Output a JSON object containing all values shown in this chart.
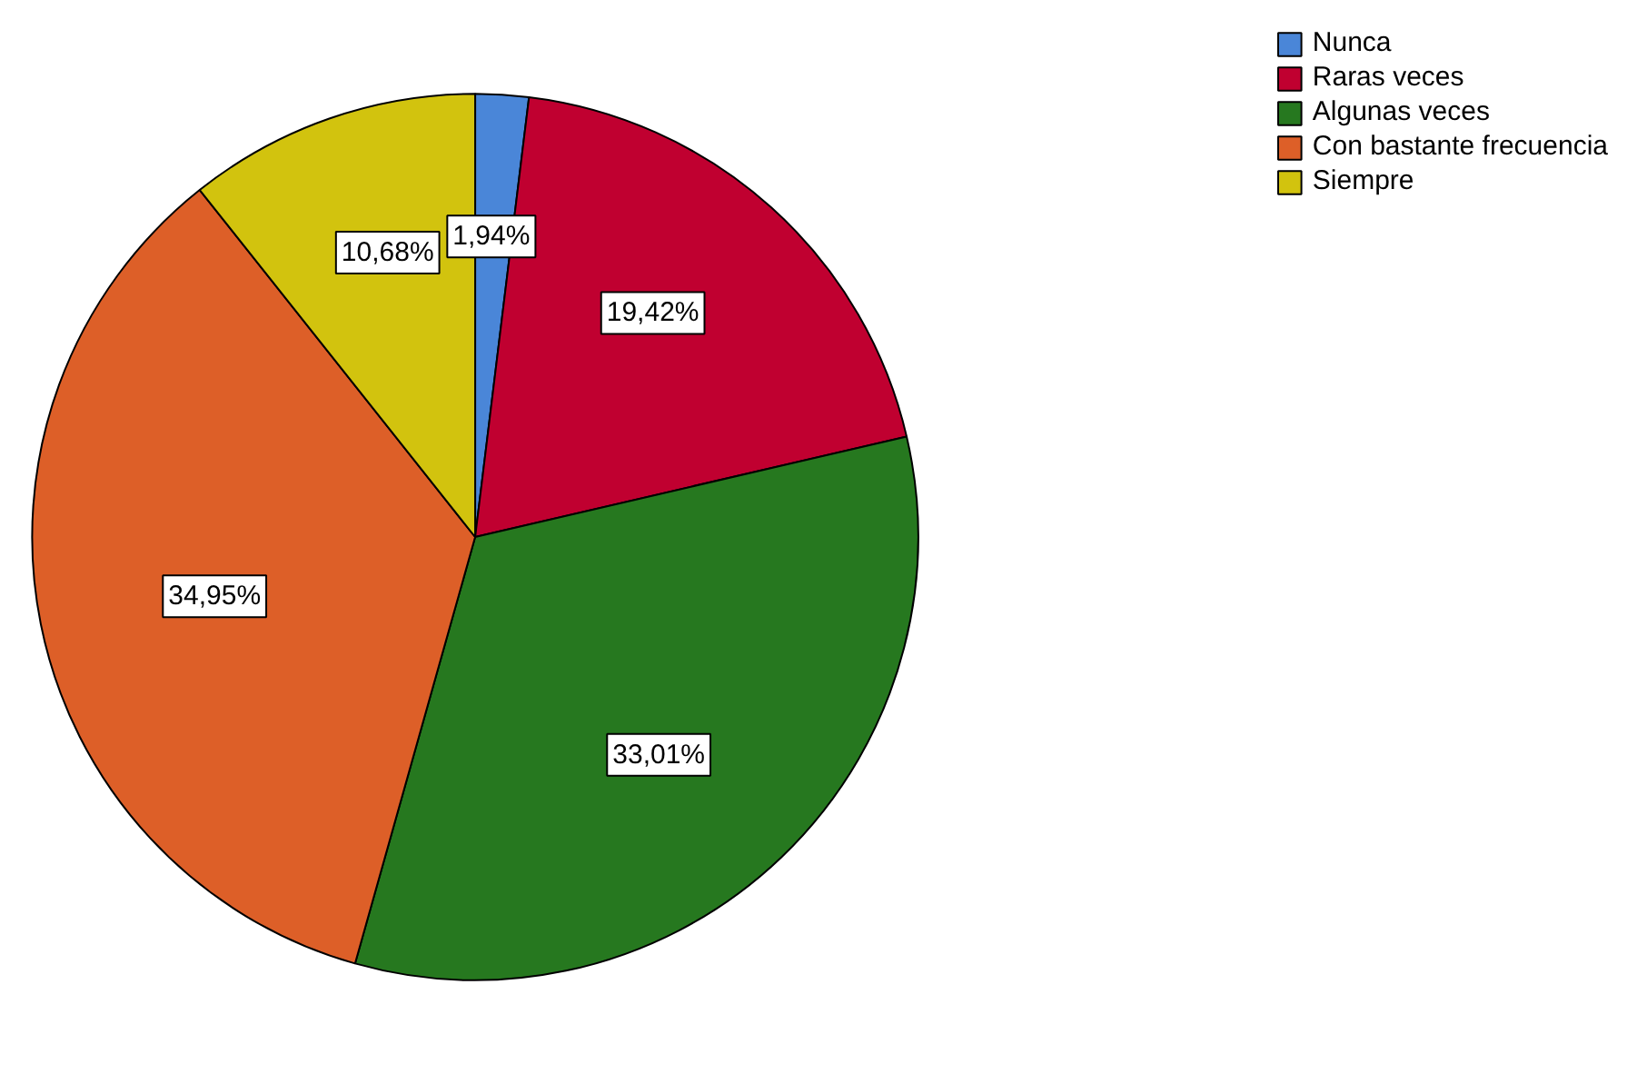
{
  "chart_data": {
    "type": "pie",
    "categories": [
      "Nunca",
      "Raras veces",
      "Algunas veces",
      "Con bastante frecuencia",
      "Siempre"
    ],
    "values": [
      1.94,
      19.42,
      33.01,
      34.95,
      10.68
    ],
    "colors": [
      "#4a86d8",
      "#c00030",
      "#26781f",
      "#dd5f28",
      "#d2c30e"
    ],
    "value_labels": [
      "1,94%",
      "19,42%",
      "33,01%",
      "34,95%",
      "10,68%"
    ],
    "legend": "top right"
  }
}
